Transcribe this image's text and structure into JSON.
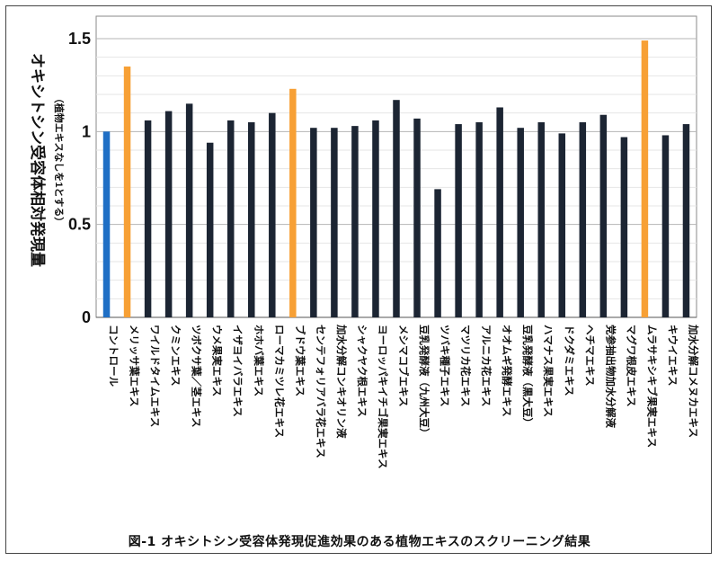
{
  "caption": "図-1  オキシトシン受容体発現促進効果のある植物エキスのスクリーニング結果",
  "chart_data": {
    "type": "bar",
    "ylabel_main": "オキシトシン受容体相対発現量",
    "ylabel_sub": "（植物エキスなしを1とする）",
    "ylim": [
      0,
      1.5
    ],
    "yticks": [
      {
        "value": 0,
        "label": "0"
      },
      {
        "value": 0.5,
        "label": "0.5"
      },
      {
        "value": 1,
        "label": "1"
      },
      {
        "value": 1.5,
        "label": "1.5"
      }
    ],
    "grid": true,
    "legend": "none",
    "colors": {
      "control": "#1f6fc5",
      "highlight": "#f7a035",
      "default": "#1c2533"
    },
    "categories": [
      "コントロール",
      "メリッサ葉エキス",
      "ワイルドタイムエキス",
      "クミンエキス",
      "ツボクサ葉／茎エキス",
      "ウメ果実エキス",
      "イザヨイバラエキス",
      "ホホバ葉エキス",
      "ローマカミツレ花エキス",
      "ブドウ葉エキス",
      "センテフォリアバラ花エキス",
      "加水分解コンキオリン液",
      "シャクヤク根エキス",
      "ヨーロッパキイチゴ果実エキス",
      "メシマコブエキス",
      "豆乳発酵液（九州大豆）",
      "ツバキ種子エキス",
      "マツリカ花エキス",
      "アルニカ花エキス",
      "オオムギ発酵エキス",
      "豆乳発酵液（黒大豆）",
      "ハマナス果実エキス",
      "ドクダミエキス",
      "ヘチマエキス",
      "党参抽出物加水分解液",
      "マグワ根皮エキス",
      "ムラサキシキブ果実エキス",
      "キウイエキス",
      "加水分解コメヌカエキス"
    ],
    "values": [
      1.0,
      1.35,
      1.06,
      1.11,
      1.15,
      0.94,
      1.06,
      1.05,
      1.1,
      1.23,
      1.02,
      1.02,
      1.03,
      1.06,
      1.17,
      1.07,
      0.69,
      1.04,
      1.05,
      1.13,
      1.02,
      1.05,
      0.99,
      1.05,
      1.09,
      0.97,
      1.49,
      0.98,
      1.04
    ],
    "bar_kind": [
      "control",
      "highlight",
      "default",
      "default",
      "default",
      "default",
      "default",
      "default",
      "default",
      "highlight",
      "default",
      "default",
      "default",
      "default",
      "default",
      "default",
      "default",
      "default",
      "default",
      "default",
      "default",
      "default",
      "default",
      "default",
      "default",
      "default",
      "highlight",
      "default",
      "default"
    ]
  }
}
